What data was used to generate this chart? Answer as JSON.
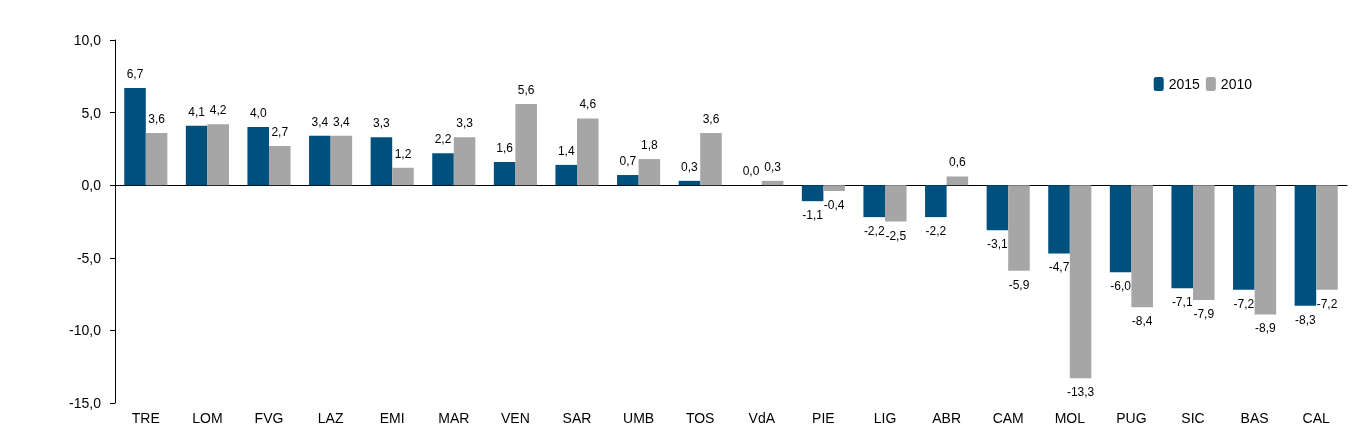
{
  "chart_data": {
    "type": "bar",
    "categories": [
      "TRE",
      "LOM",
      "FVG",
      "LAZ",
      "EMI",
      "MAR",
      "VEN",
      "SAR",
      "UMB",
      "TOS",
      "VdA",
      "PIE",
      "LIG",
      "ABR",
      "CAM",
      "MOL",
      "PUG",
      "SIC",
      "BAS",
      "CAL"
    ],
    "series": [
      {
        "name": "2015",
        "color": "#00507d",
        "values": [
          6.7,
          4.1,
          4.0,
          3.4,
          3.3,
          2.2,
          1.6,
          1.4,
          0.7,
          0.3,
          0.0,
          -1.1,
          -2.2,
          -2.2,
          -3.1,
          -4.7,
          -6.0,
          -7.1,
          -7.2,
          -8.3
        ],
        "value_labels": [
          "6,7",
          "4,1",
          "4,0",
          "3,4",
          "3,3",
          "2,2",
          "1,6",
          "1,4",
          "0,7",
          "0,3",
          "0,0",
          "-1,1",
          "-2,2",
          "-2,2",
          "-3,1",
          "-4,7",
          "-6,0",
          "-7,1",
          "-7,2",
          "-8,3"
        ]
      },
      {
        "name": "2010",
        "color": "#a6a6a6",
        "values": [
          3.6,
          4.2,
          2.7,
          3.4,
          1.2,
          3.3,
          5.6,
          4.6,
          1.8,
          3.6,
          0.3,
          -0.4,
          -2.5,
          0.6,
          -5.9,
          -13.3,
          -8.4,
          -7.9,
          -8.9,
          -7.2
        ],
        "value_labels": [
          "3,6",
          "4,2",
          "2,7",
          "3,4",
          "1,2",
          "3,3",
          "5,6",
          "4,6",
          "1,8",
          "3,6",
          "0,3",
          "-0,4",
          "-2,5",
          "0,6",
          "-5,9",
          "-13,3",
          "-8,4",
          "-7,9",
          "-8,9",
          "-7,2"
        ]
      }
    ],
    "ylim": [
      -15,
      10
    ],
    "yticks": [
      {
        "value": -15,
        "label": "-15,0"
      },
      {
        "value": -10,
        "label": "-10,0"
      },
      {
        "value": -5,
        "label": "-5,0"
      },
      {
        "value": 0,
        "label": "0,0"
      },
      {
        "value": 5,
        "label": "5,0"
      },
      {
        "value": 10,
        "label": "10,0"
      }
    ],
    "legend": "top right"
  }
}
